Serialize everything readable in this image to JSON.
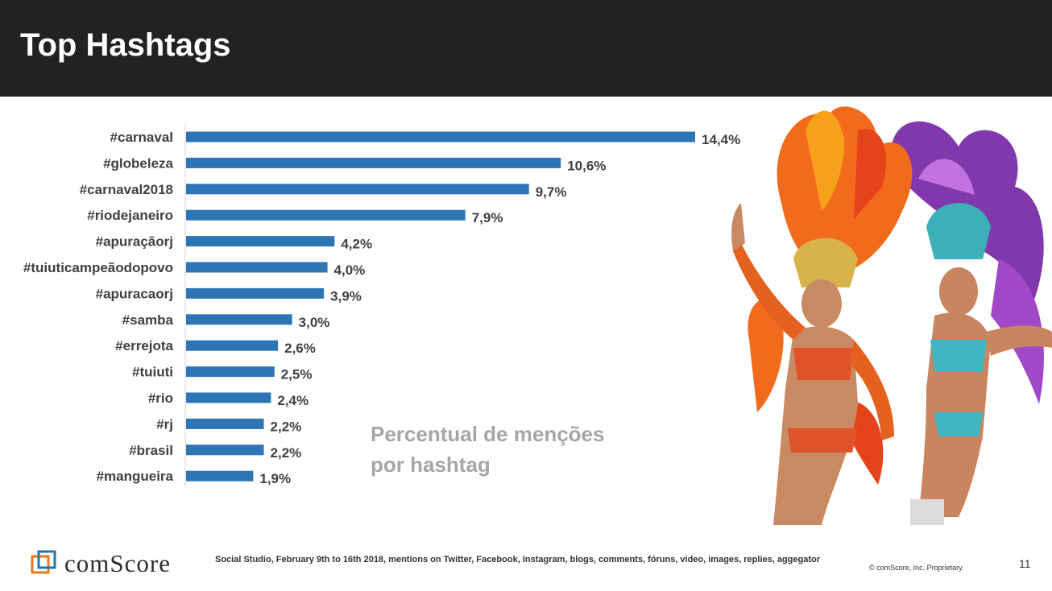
{
  "header": {
    "title": "Top Hashtags"
  },
  "chart_note": "Percentual de menções por hashtag",
  "chart_data": {
    "type": "bar",
    "orientation": "horizontal",
    "categories": [
      "#carnaval",
      "#globeleza",
      "#carnaval2018",
      "#riodejaneiro",
      "#apuraçãorj",
      "#tuiuticampeãodopovo",
      "#apuracaorj",
      "#samba",
      "#errejota",
      "#tuiuti",
      "#rio",
      "#rj",
      "#brasil",
      "#mangueira"
    ],
    "values": [
      14.4,
      10.6,
      9.7,
      7.9,
      4.2,
      4.0,
      3.9,
      3.0,
      2.6,
      2.5,
      2.4,
      2.2,
      2.2,
      1.9
    ],
    "labels": [
      "14,4%",
      "10,6%",
      "9,7%",
      "7,9%",
      "4,2%",
      "4,0%",
      "3,9%",
      "3,0%",
      "2,6%",
      "2,5%",
      "2,4%",
      "2,2%",
      "2,2%",
      "1,9%"
    ],
    "bar_color": "#2e75b6",
    "grid": false,
    "legend": "none"
  },
  "footer": {
    "brand": "comScore",
    "source": "Social Studio, February 9th to 16th 2018,  mentions on Twitter, Facebook, Instagram, blogs, comments, fóruns, video, images, replies, aggegator",
    "copyright": "© comScore, Inc. Proprietary.",
    "page": "11",
    "logo_color": "#e87722",
    "logo_color2": "#1f77b4"
  },
  "photo": {
    "icon": "samba-dancers-image"
  }
}
